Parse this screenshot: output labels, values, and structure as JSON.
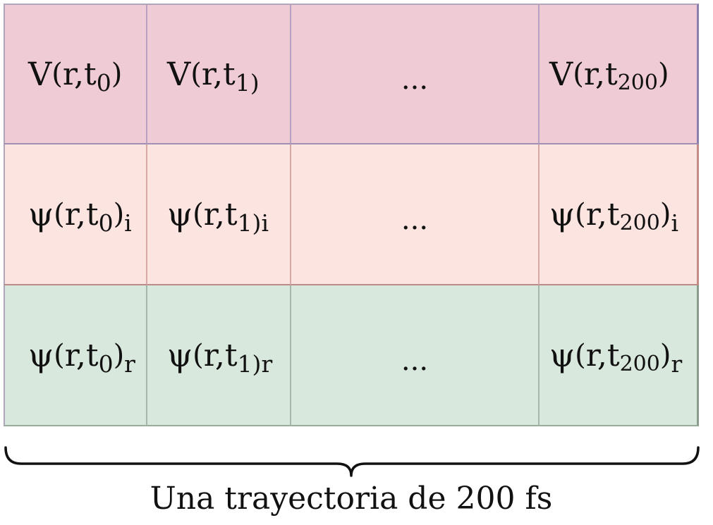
{
  "rows": [
    {
      "cells": [
        {
          "sym": "V",
          "open": "(",
          "arg": "r,t",
          "sub": "0",
          "close": ")",
          "suffix": ""
        },
        {
          "sym": "V",
          "open": "(",
          "arg": "r,t",
          "sub": "1)",
          "close": "",
          "suffix": ""
        },
        {
          "text": "..."
        },
        {
          "sym": "V",
          "open": "(",
          "arg": "r,t",
          "sub": "200",
          "close": ")",
          "suffix": ""
        }
      ]
    },
    {
      "cells": [
        {
          "sym": "ψ",
          "open": "(",
          "arg": "r,t",
          "sub": "0",
          "close": ")",
          "suffix": "i"
        },
        {
          "sym": "ψ",
          "open": "(",
          "arg": "r,t",
          "sub": "1)",
          "close": "",
          "suffix": "i"
        },
        {
          "text": "..."
        },
        {
          "sym": "ψ",
          "open": "(",
          "arg": "r,t",
          "sub": "200",
          "close": ")",
          "suffix": "i"
        }
      ]
    },
    {
      "cells": [
        {
          "sym": "ψ",
          "open": "(",
          "arg": "r,t",
          "sub": "0",
          "close": ")",
          "suffix": "r"
        },
        {
          "sym": "ψ",
          "open": "(",
          "arg": "r,t",
          "sub": "1)",
          "close": "",
          "suffix": "r"
        },
        {
          "text": "..."
        },
        {
          "sym": "ψ",
          "open": "(",
          "arg": "r,t",
          "sub": "200",
          "close": ")",
          "suffix": "r"
        }
      ]
    }
  ],
  "caption": "Una trayectoria de 200 fs",
  "colors": {
    "potential_row": "#eecbd5",
    "imag_row": "#fce4e1",
    "real_row": "#d9e8dd"
  }
}
